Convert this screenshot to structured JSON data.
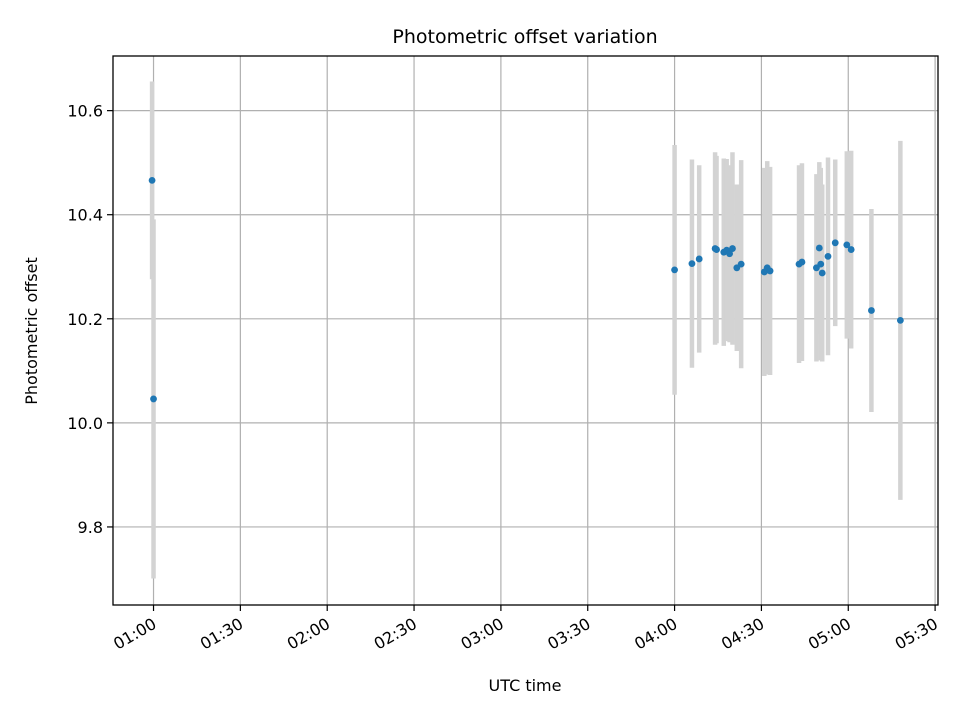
{
  "chart_data": {
    "type": "scatter",
    "title": "Photometric offset variation",
    "xlabel": "UTC time",
    "ylabel": "Photometric offset",
    "x_unit": "time_hh:mm",
    "xlim": [
      "00:46",
      "05:31"
    ],
    "ylim": [
      9.65,
      10.705
    ],
    "x_ticks": [
      "01:00",
      "01:30",
      "02:00",
      "02:30",
      "03:00",
      "03:30",
      "04:00",
      "04:30",
      "05:00",
      "05:30"
    ],
    "y_ticks": [
      9.8,
      10.0,
      10.2,
      10.4,
      10.6
    ],
    "y_tick_labels": [
      "9.8",
      "10.0",
      "10.2",
      "10.4",
      "10.6"
    ],
    "grid": true,
    "colors": {
      "marker": "#1f77b4",
      "errorbar": "#d3d3d3",
      "grid": "#b0b0b0"
    },
    "points": [
      {
        "x": "00:59:30",
        "y": 10.466,
        "err": 0.19
      },
      {
        "x": "01:00:00",
        "y": 10.046,
        "err": 0.345
      },
      {
        "x": "04:00:00",
        "y": 10.294,
        "err": 0.24
      },
      {
        "x": "04:06:00",
        "y": 10.306,
        "err": 0.2
      },
      {
        "x": "04:08:30",
        "y": 10.315,
        "err": 0.18
      },
      {
        "x": "04:14:00",
        "y": 10.335,
        "err": 0.185
      },
      {
        "x": "04:14:30",
        "y": 10.333,
        "err": 0.18
      },
      {
        "x": "04:17:00",
        "y": 10.328,
        "err": 0.18
      },
      {
        "x": "04:18:00",
        "y": 10.332,
        "err": 0.175
      },
      {
        "x": "04:19:00",
        "y": 10.325,
        "err": 0.17
      },
      {
        "x": "04:20:00",
        "y": 10.335,
        "err": 0.185
      },
      {
        "x": "04:21:30",
        "y": 10.298,
        "err": 0.16
      },
      {
        "x": "04:23:00",
        "y": 10.305,
        "err": 0.2
      },
      {
        "x": "04:31:00",
        "y": 10.29,
        "err": 0.2
      },
      {
        "x": "04:32:00",
        "y": 10.298,
        "err": 0.205
      },
      {
        "x": "04:33:00",
        "y": 10.292,
        "err": 0.2
      },
      {
        "x": "04:43:00",
        "y": 10.305,
        "err": 0.19
      },
      {
        "x": "04:44:00",
        "y": 10.309,
        "err": 0.19
      },
      {
        "x": "04:49:00",
        "y": 10.298,
        "err": 0.18
      },
      {
        "x": "04:50:00",
        "y": 10.336,
        "err": 0.165
      },
      {
        "x": "04:50:30",
        "y": 10.305,
        "err": 0.185
      },
      {
        "x": "04:51:00",
        "y": 10.288,
        "err": 0.17
      },
      {
        "x": "04:53:00",
        "y": 10.32,
        "err": 0.19
      },
      {
        "x": "04:55:30",
        "y": 10.346,
        "err": 0.16
      },
      {
        "x": "04:59:30",
        "y": 10.342,
        "err": 0.18
      },
      {
        "x": "05:01:00",
        "y": 10.333,
        "err": 0.19
      },
      {
        "x": "05:08:00",
        "y": 10.216,
        "err": 0.195
      },
      {
        "x": "05:18:00",
        "y": 10.197,
        "err": 0.345
      }
    ]
  }
}
